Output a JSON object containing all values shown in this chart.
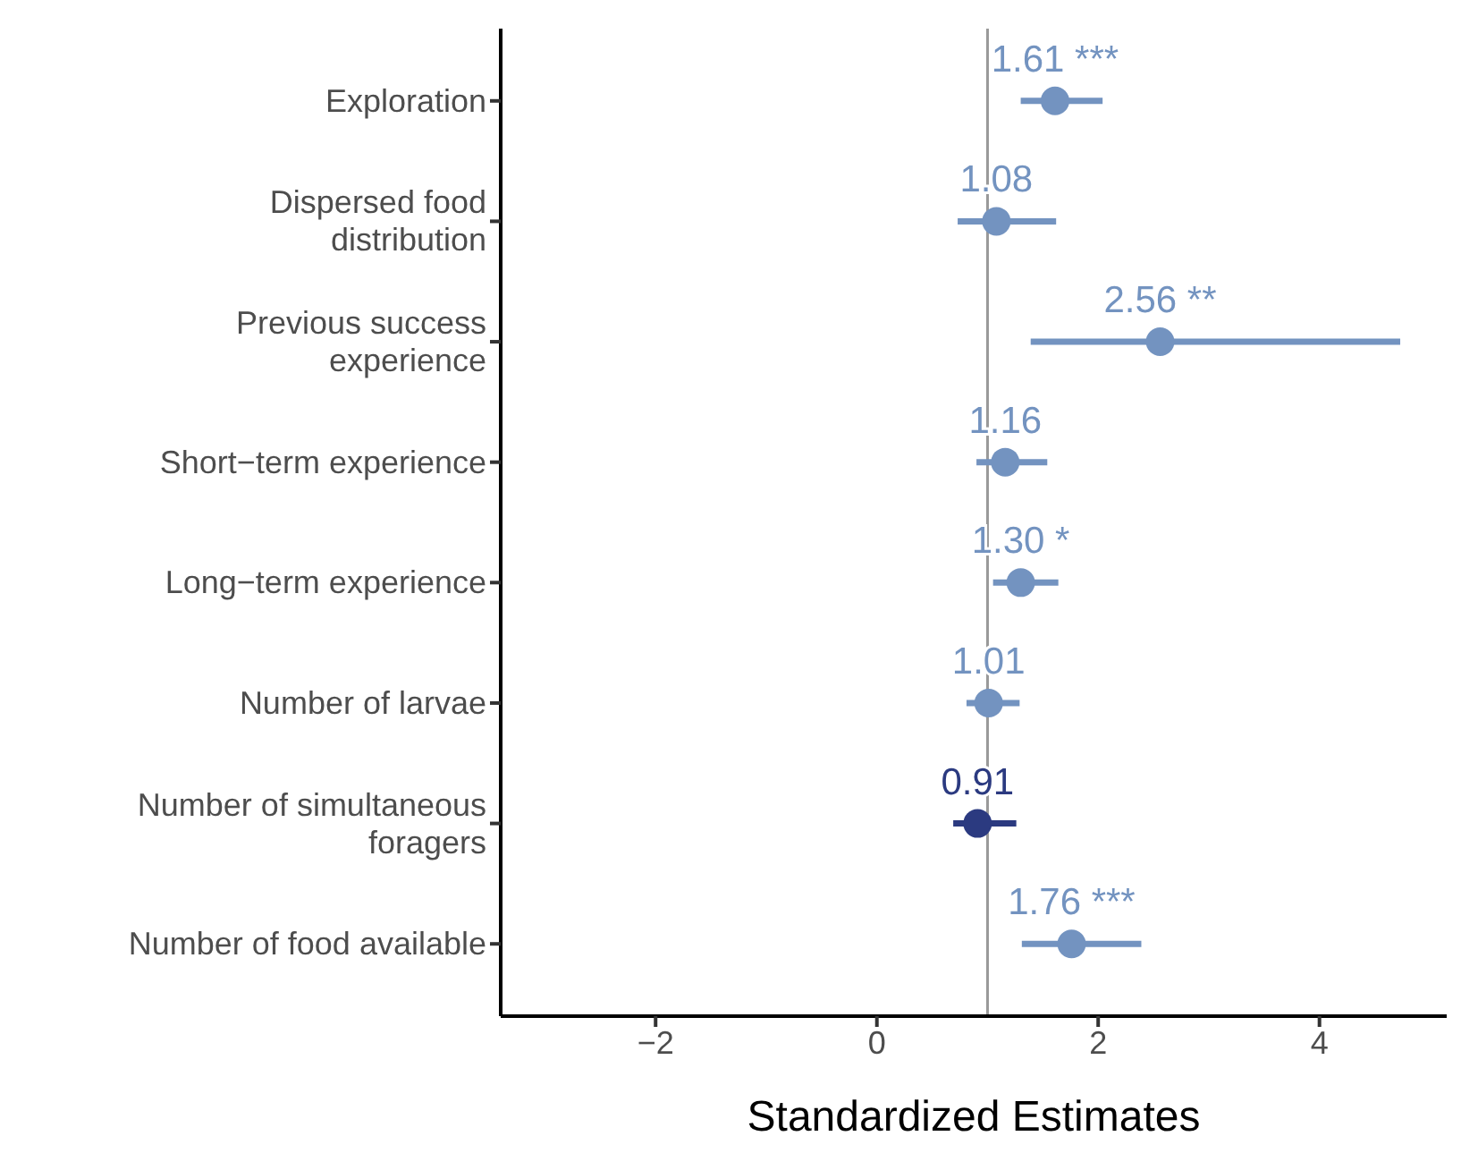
{
  "chart_data": {
    "type": "scatter",
    "orientation": "horizontal",
    "xlabel": "Standardized Estimates",
    "categories": [
      "Exploration",
      "Dispersed food distribution",
      "Previous success experience",
      "Short−term experience",
      "Long−term experience",
      "Number of larvae",
      "Number of simultaneous foragers",
      "Number of food available"
    ],
    "values": [
      1.61,
      1.08,
      2.56,
      1.16,
      1.3,
      1.01,
      0.91,
      1.76
    ],
    "errors": [
      [
        1.3,
        2.04
      ],
      [
        0.73,
        1.62
      ],
      [
        1.39,
        4.73
      ],
      [
        0.9,
        1.54
      ],
      [
        1.05,
        1.64
      ],
      [
        0.81,
        1.29
      ],
      [
        0.69,
        1.26
      ],
      [
        1.31,
        2.39
      ]
    ],
    "value_labels": [
      "1.61 ***",
      "1.08",
      "2.56 **",
      "1.16",
      "1.30 *",
      "1.01",
      "0.91",
      "1.76 ***"
    ],
    "colors": [
      "#7393c0",
      "#7393c0",
      "#7393c0",
      "#7393c0",
      "#7393c0",
      "#7393c0",
      "#2b3a80",
      "#7393c0"
    ],
    "xlim": [
      -3.4,
      5.15
    ],
    "xticks": [
      -2,
      0,
      2,
      4
    ],
    "ref_lines": [
      {
        "axis": "x",
        "value": 1,
        "color": "#999999"
      }
    ],
    "marker": "circle",
    "grid": false,
    "legend": false
  }
}
